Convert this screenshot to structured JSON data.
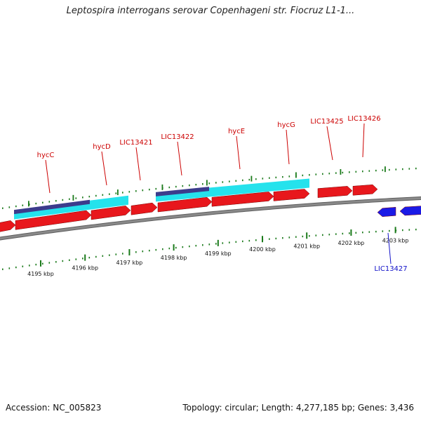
{
  "title": "Leptospira interrogans serovar Copenhageni str. Fiocruz L1-1...",
  "footer": {
    "accession": "Accession: NC_005823",
    "summary": "Topology: circular; Length: 4,277,185 bp; Genes: 3,436"
  },
  "colors": {
    "forward_gene": "#e8171c",
    "reverse_gene": "#1a1ae6",
    "cyan_feature": "#25e2ec",
    "navy_feature": "#3c3c8c",
    "backbone": "#8a8a8a",
    "tick": "#1a7a1a",
    "label_forward": "#cc0000",
    "label_reverse": "#1010c8"
  },
  "kbp_ticks": [
    {
      "label": "4195 kbp",
      "kbp": 4195
    },
    {
      "label": "4196 kbp",
      "kbp": 4196
    },
    {
      "label": "4197 kbp",
      "kbp": 4197
    },
    {
      "label": "4198 kbp",
      "kbp": 4198
    },
    {
      "label": "4199 kbp",
      "kbp": 4199
    },
    {
      "label": "4200 kbp",
      "kbp": 4200
    },
    {
      "label": "4201 kbp",
      "kbp": 4201
    },
    {
      "label": "4202 kbp",
      "kbp": 4202
    },
    {
      "label": "4203 kbp",
      "kbp": 4203
    }
  ],
  "genes": [
    {
      "label": "hycC",
      "strand": "forward"
    },
    {
      "label": "hycD",
      "strand": "forward"
    },
    {
      "label": "LIC13421",
      "strand": "forward"
    },
    {
      "label": "LIC13422",
      "strand": "forward"
    },
    {
      "label": "hycE",
      "strand": "forward"
    },
    {
      "label": "hycG",
      "strand": "forward"
    },
    {
      "label": "LIC13425",
      "strand": "forward"
    },
    {
      "label": "LIC13426",
      "strand": "forward"
    },
    {
      "label": "LIC13427",
      "strand": "reverse"
    }
  ]
}
